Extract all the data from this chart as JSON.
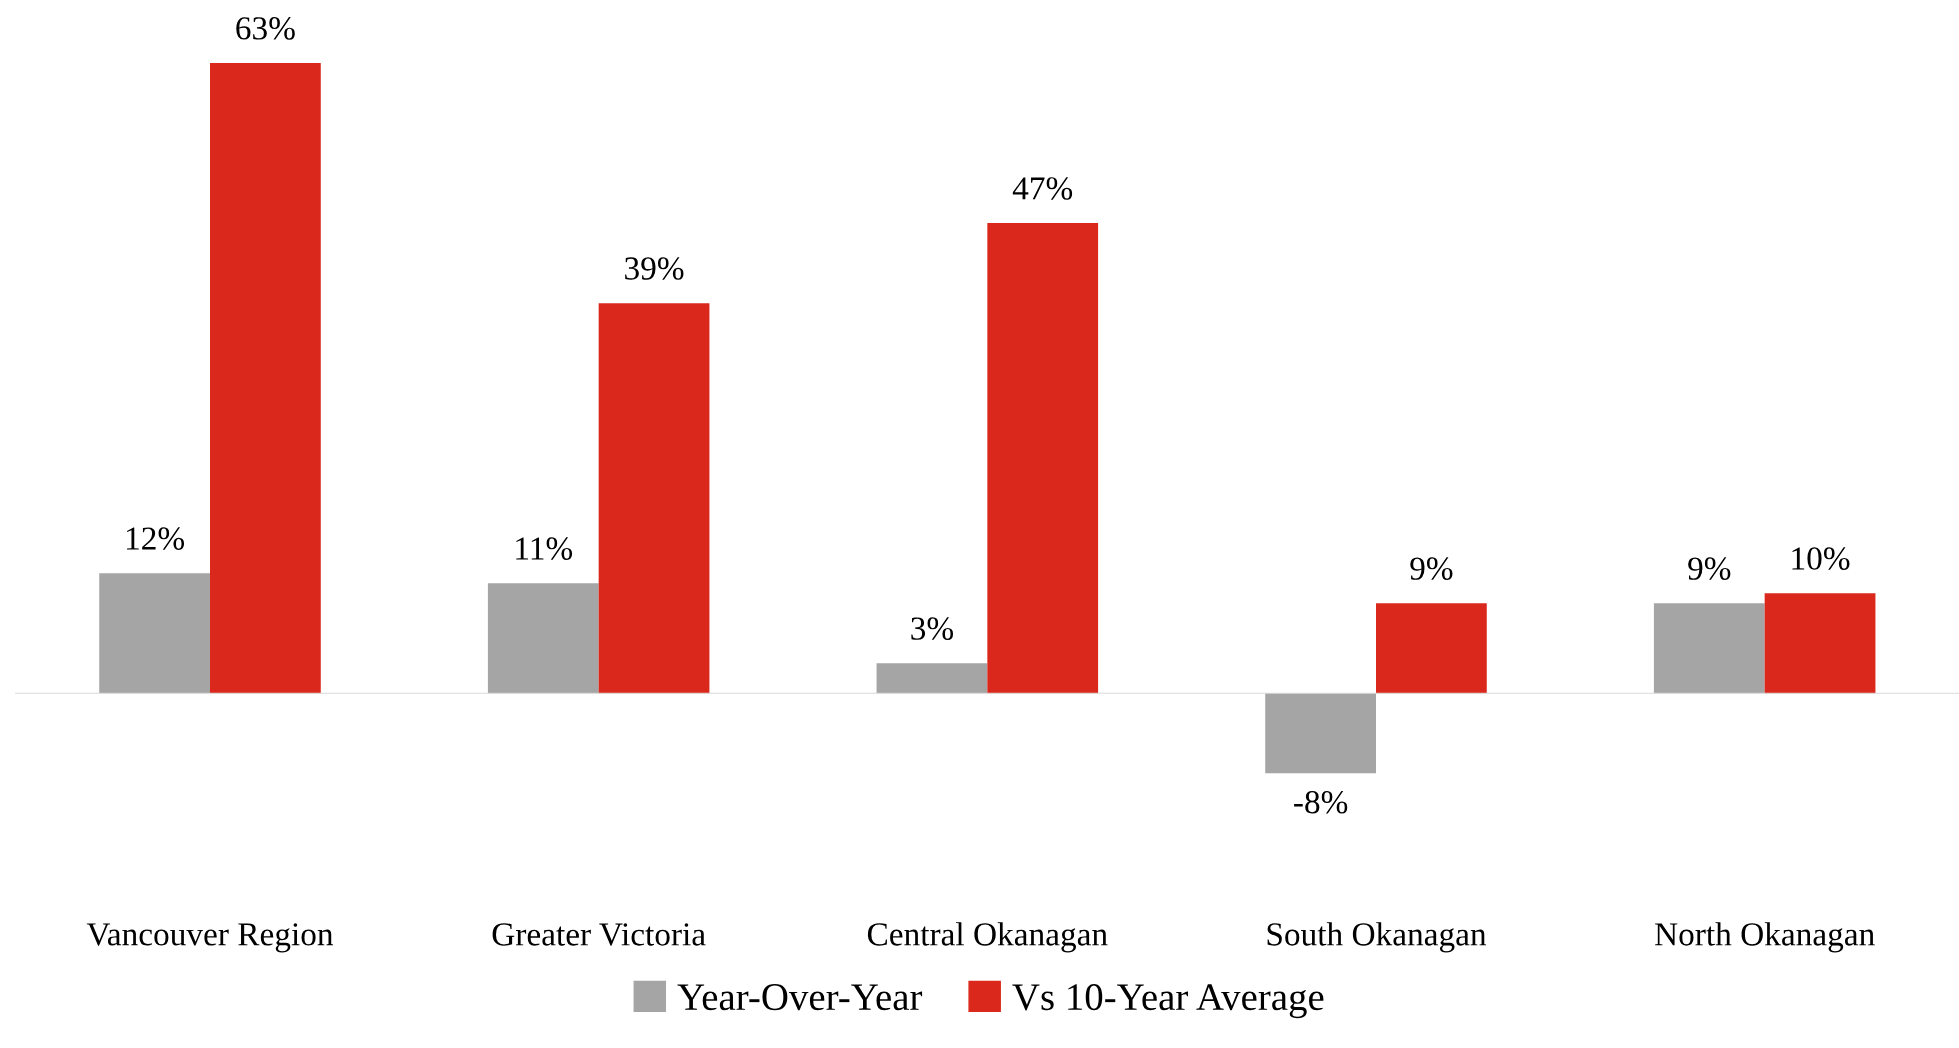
{
  "chart_data": {
    "type": "bar",
    "categories": [
      "Vancouver Region",
      "Greater Victoria",
      "Central Okanagan",
      "South Okanagan",
      "North Okanagan"
    ],
    "series": [
      {
        "name": "Year-Over-Year",
        "color": "#a5a5a5",
        "values": [
          12,
          11,
          3,
          -8,
          9
        ],
        "value_labels": [
          "12%",
          "11%",
          "3%",
          "-8%",
          "9%"
        ]
      },
      {
        "name": "Vs 10-Year Average",
        "color": "#da291c",
        "values": [
          63,
          39,
          47,
          9,
          10
        ],
        "value_labels": [
          "63%",
          "39%",
          "47%",
          "9%",
          "10%"
        ]
      }
    ],
    "legend": "bottom"
  }
}
